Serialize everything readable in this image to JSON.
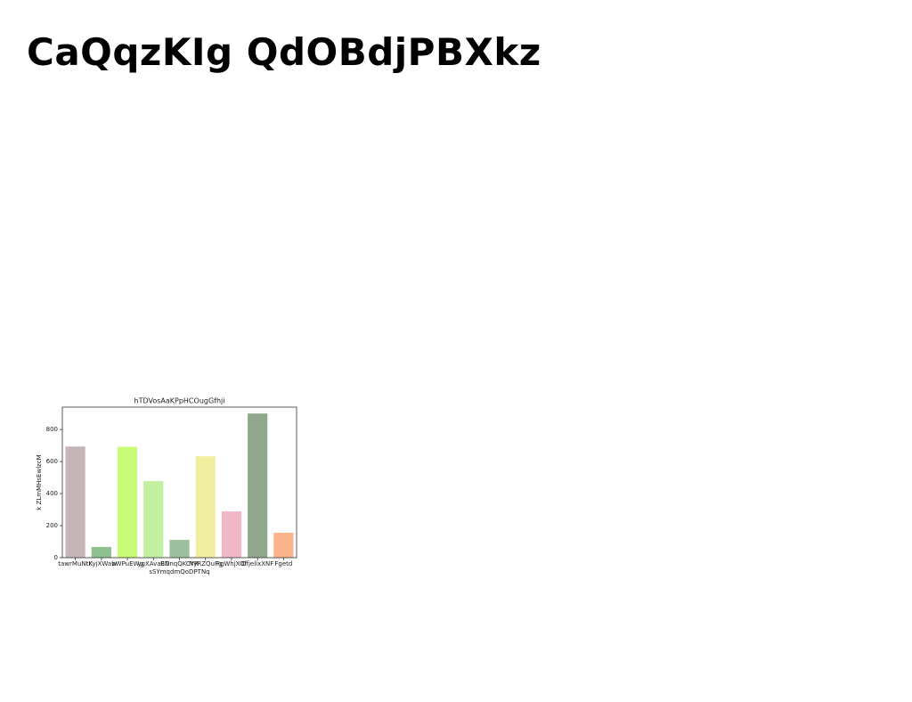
{
  "header": {
    "title": "CaQqzKIg QdOBdjPBXkz"
  },
  "chart_data": {
    "type": "bar",
    "title": "hTDVosAaKPpHCOugGfhji",
    "x_label": "sSYmqdmQoDPTNq",
    "y_label": "k ZLmMHsEwlzcM",
    "categories": [
      "tawrMuNtK",
      "tKyjXWaw",
      "bWPuEWg",
      "ygXAvaEN",
      "BDnqQKCYR",
      "NyRZQuFg",
      "FgWhjXOf",
      "OfjelixXNF",
      "Fgetd"
    ],
    "values": [
      694,
      67,
      692,
      478,
      111,
      633,
      289,
      900,
      156
    ],
    "colors": [
      "#c4b5b8",
      "#8fc08f",
      "#c8fa78",
      "#c3f0a0",
      "#9cbf9c",
      "#f2eea0",
      "#f0b8c4",
      "#8fa88c",
      "#fbb48c"
    ],
    "ylim": [
      0,
      940
    ],
    "yticks": [
      0,
      200,
      400,
      600,
      800
    ]
  }
}
